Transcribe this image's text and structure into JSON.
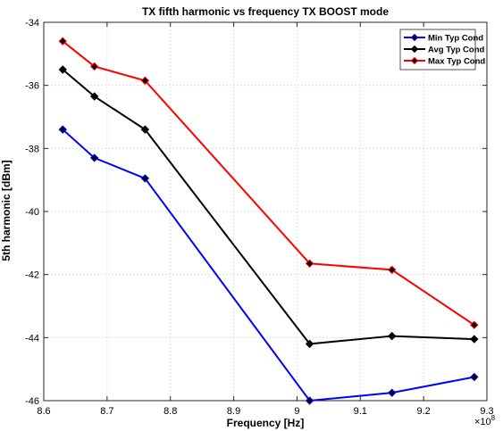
{
  "chart_data": {
    "type": "line",
    "title": "TX fifth harmonic vs frequency TX BOOST mode",
    "xlabel": "Frequency [Hz]",
    "ylabel": "5th harmonic [dBm]",
    "x_exponent_label": "×10",
    "x_exponent_power": "8",
    "xlim": [
      8.6,
      9.3
    ],
    "ylim": [
      -46,
      -34
    ],
    "x_ticks": [
      "8.6",
      "8.7",
      "8.8",
      "8.9",
      "9",
      "9.1",
      "9.2",
      "9.3"
    ],
    "y_ticks": [
      "-34",
      "-36",
      "-38",
      "-40",
      "-42",
      "-44",
      "-46"
    ],
    "grid": true,
    "legend_position": "top-right",
    "x": [
      8.63,
      8.68,
      8.76,
      9.02,
      9.15,
      9.28
    ],
    "series": [
      {
        "name": "Min Typ Cond",
        "color": "#0000ff",
        "values": [
          -37.4,
          -38.3,
          -38.95,
          -46.0,
          -45.75,
          -45.25
        ]
      },
      {
        "name": "Avg Typ Cond",
        "color": "#000000",
        "values": [
          -35.5,
          -36.35,
          -37.4,
          -44.2,
          -43.95,
          -44.05
        ]
      },
      {
        "name": "Max Typ Cond",
        "color": "#ff0000",
        "values": [
          -34.6,
          -35.4,
          -35.85,
          -41.65,
          -41.85,
          -43.6
        ]
      }
    ]
  }
}
